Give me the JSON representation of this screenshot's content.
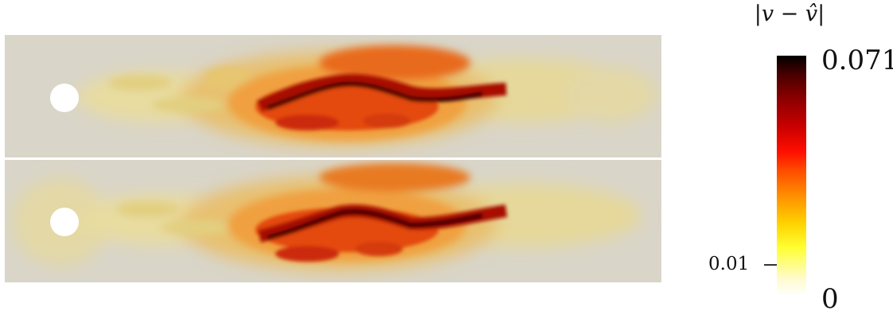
{
  "figure": {
    "panels": [
      {
        "id": "top"
      },
      {
        "id": "bottom"
      }
    ]
  },
  "colorbar": {
    "title": "|v − v̂|",
    "max_label": "0.071",
    "min_label": "0",
    "tick_label": "0.01",
    "range": [
      0,
      0.071
    ],
    "tick_value": 0.01,
    "colormap": [
      "#ffffff",
      "#ffff33",
      "#ff9900",
      "#ff0f00",
      "#8c0000",
      "#000000"
    ]
  },
  "colors": {
    "background_field": "#d9d5c8",
    "cylinder": "#ffffff"
  }
}
